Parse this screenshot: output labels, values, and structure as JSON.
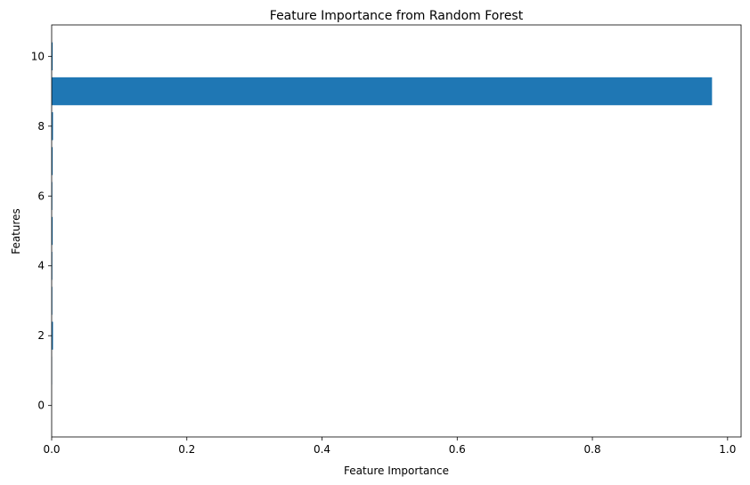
{
  "chart_data": {
    "type": "bar",
    "orientation": "horizontal",
    "title": "Feature Importance from Random Forest",
    "xlabel": "Feature Importance",
    "ylabel": "Features",
    "categories": [
      0,
      1,
      2,
      3,
      4,
      5,
      6,
      7,
      8,
      9,
      10
    ],
    "values": [
      0.0,
      0.0005,
      0.002,
      0.001,
      0.001,
      0.0015,
      0.001,
      0.0015,
      0.002,
      0.977,
      0.0015
    ],
    "xlim": [
      0,
      1.02
    ],
    "ylim": [
      -0.9,
      10.9
    ],
    "xticks": [
      0.0,
      0.2,
      0.4,
      0.6,
      0.8,
      1.0
    ],
    "xtick_labels": [
      "0.0",
      "0.2",
      "0.4",
      "0.6",
      "0.8",
      "1.0"
    ],
    "yticks": [
      0,
      2,
      4,
      6,
      8,
      10
    ],
    "ytick_labels": [
      "0",
      "2",
      "4",
      "6",
      "8",
      "10"
    ],
    "bar_color": "#1f77b4",
    "grid": false
  }
}
